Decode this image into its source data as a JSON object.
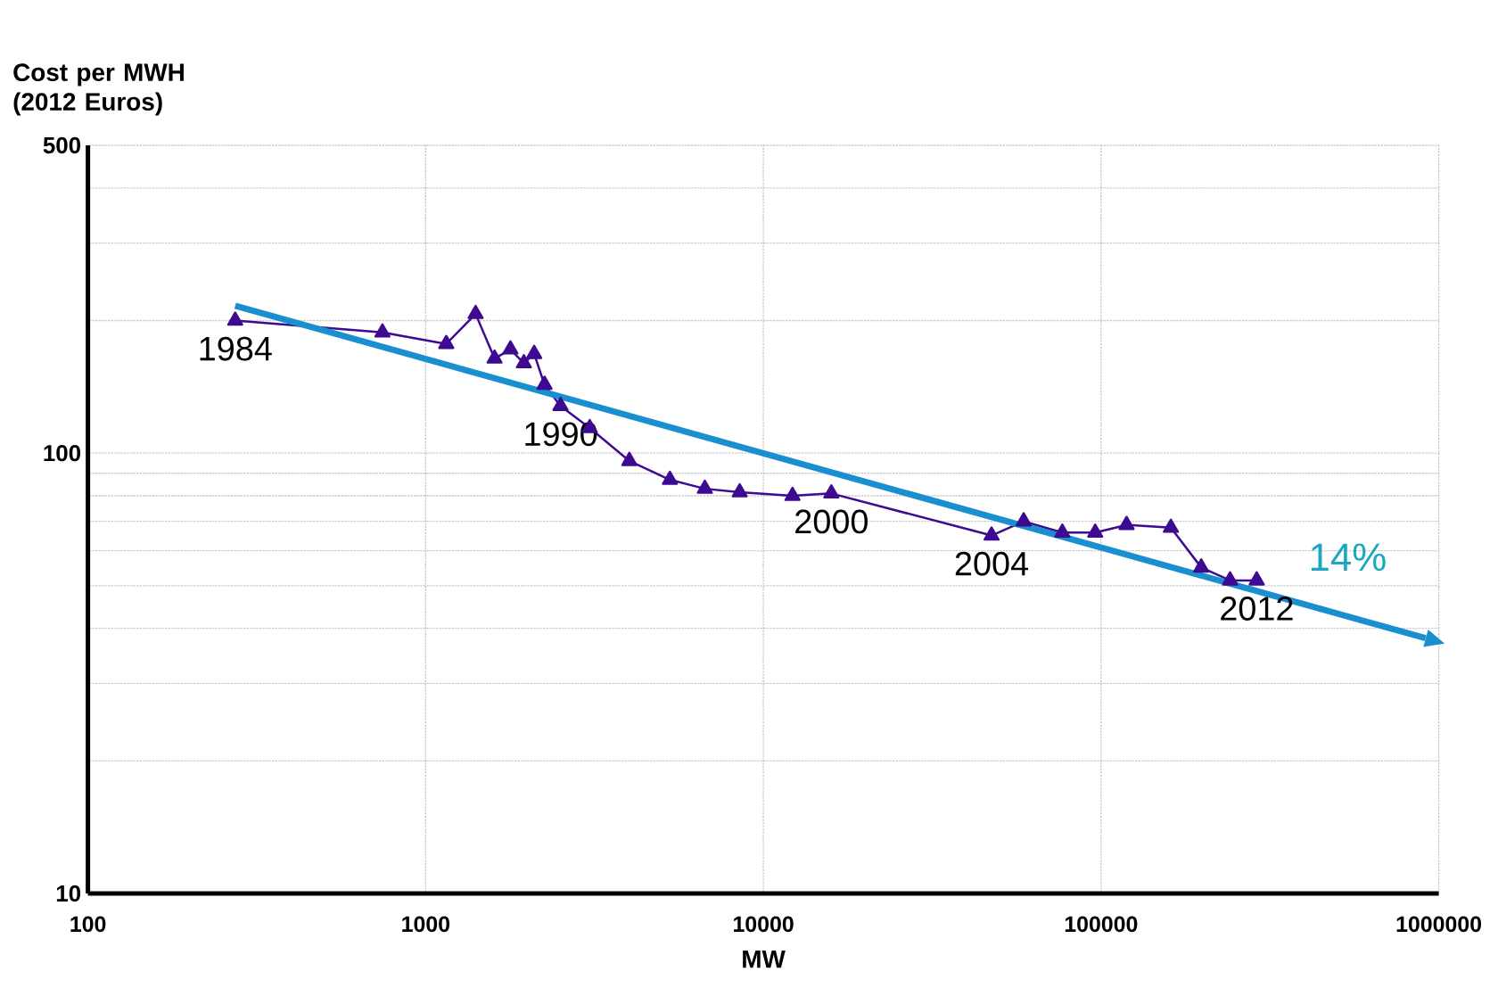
{
  "chart_data": {
    "type": "line",
    "xlabel": "MW",
    "ylabel": "Cost per MWH (2012 Euros)",
    "log": "xy",
    "grid": true,
    "xlim": [
      100,
      1000000
    ],
    "ylim": [
      10,
      500
    ],
    "xticks": [
      100,
      1000,
      10000,
      100000,
      1000000
    ],
    "yticks": [
      10,
      {
        "value": 20,
        "label": null
      },
      {
        "value": 30,
        "label": null
      },
      {
        "value": 40,
        "label": null
      },
      {
        "value": 50,
        "label": null
      },
      {
        "value": 60,
        "label": null
      },
      {
        "value": 70,
        "label": null
      },
      {
        "value": 80,
        "label": null
      },
      {
        "value": 90,
        "label": null
      },
      100,
      {
        "value": 200,
        "label": null
      },
      {
        "value": 300,
        "label": null
      },
      {
        "value": 400,
        "label": null
      },
      500
    ],
    "series": [
      {
        "color": "#3d0a91",
        "marker": "triangle",
        "x": [
          273,
          745,
          1151,
          1406,
          1600,
          1783,
          1954,
          2096,
          2249,
          2508,
          3062,
          4011,
          5288,
          6711,
          8511,
          12200,
          15900,
          47400,
          59000,
          76800,
          96100,
          119000,
          161000,
          198000,
          241000,
          289000
        ],
        "values": [
          200,
          188,
          177,
          207,
          164,
          172,
          160,
          168,
          143,
          128,
          114,
          96,
          87,
          83,
          81.5,
          80,
          81,
          65,
          70,
          66,
          66,
          68.7,
          67.7,
          55,
          51.4,
          51.4
        ]
      },
      {
        "color": "#1a8fd0",
        "marker": "none",
        "x": [
          273,
          914000
        ],
        "values": [
          216,
          38
        ]
      }
    ],
    "annotations": [
      {
        "text": "1984",
        "x": 273,
        "y": 200
      },
      {
        "text": "1990",
        "x": 2508,
        "y": 128
      },
      {
        "text": "2000",
        "x": 15900,
        "y": 81
      },
      {
        "text": "2004",
        "x": 47400,
        "y": 65
      },
      {
        "text": "2012",
        "x": 289000,
        "y": 51.4
      },
      "14%"
    ]
  }
}
